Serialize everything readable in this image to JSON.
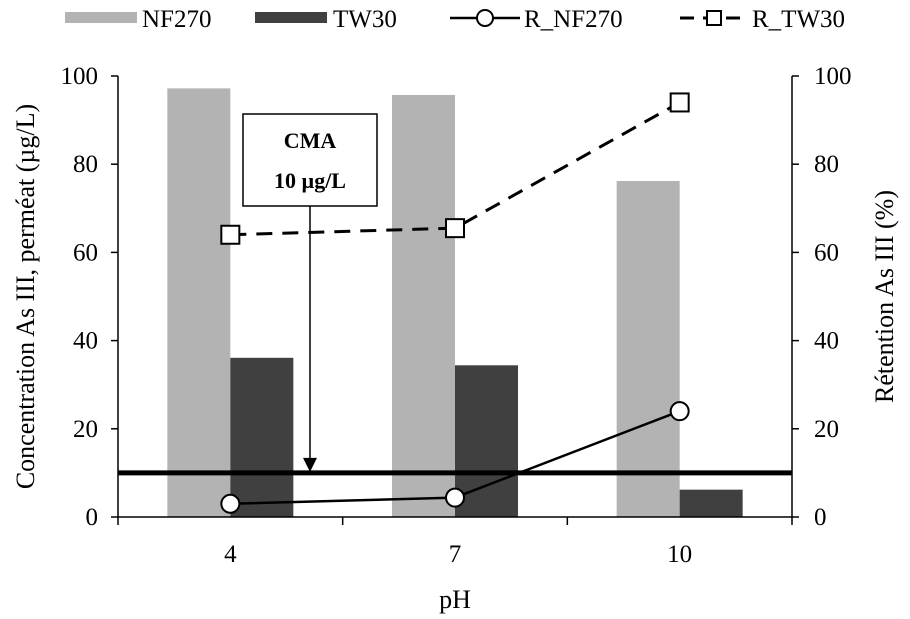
{
  "chart_data": {
    "type": "bar",
    "categories": [
      "4",
      "7",
      "10"
    ],
    "xlabel": "pH",
    "ylabel": "Concentration As III, perméat (µg/L)",
    "y2label": "Rétention As III (%)",
    "ylim": [
      0,
      100
    ],
    "y2lim": [
      0,
      100
    ],
    "yticks": [
      "0",
      "20",
      "40",
      "60",
      "80",
      "100"
    ],
    "y2ticks": [
      "0",
      "20",
      "40",
      "60",
      "80",
      "100"
    ],
    "grid": false,
    "legend_position": "top",
    "series": [
      {
        "name": "NF270",
        "kind": "bar",
        "axis": "left",
        "color": "#b3b3b3",
        "values": [
          97.2,
          95.7,
          76.2
        ]
      },
      {
        "name": "TW30",
        "kind": "bar",
        "axis": "left",
        "color": "#404040",
        "values": [
          36.1,
          34.4,
          6.2
        ]
      },
      {
        "name": "R_NF270",
        "kind": "line",
        "axis": "right",
        "style": "solid",
        "marker": "circle",
        "values": [
          3.0,
          4.4,
          24.0
        ]
      },
      {
        "name": "R_TW30",
        "kind": "line",
        "axis": "right",
        "style": "dashed",
        "marker": "square",
        "values": [
          64.0,
          65.5,
          94.0
        ]
      }
    ],
    "reference_line": {
      "value": 10,
      "axis": "left",
      "color": "#000000"
    },
    "annotation": {
      "line1": "CMA",
      "line2": "10 µg/L",
      "points_to_value": 10
    }
  }
}
